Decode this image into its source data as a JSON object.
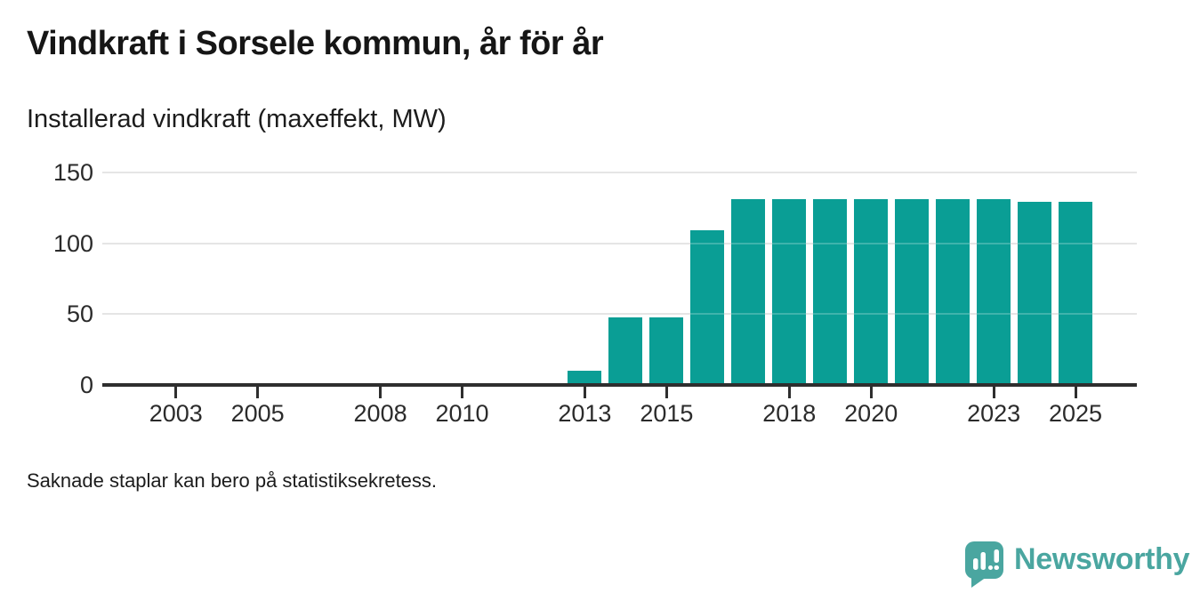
{
  "header": {
    "title": "Vindkraft i Sorsele kommun, år för år",
    "subtitle": "Installerad vindkraft (maxeffekt, MW)"
  },
  "footer": {
    "note": "Saknade staplar kan bero på statistiksekretess."
  },
  "brand": {
    "name": "Newsworthy",
    "icon": "newsworthy-speech-bubble-bar-chart-icon",
    "color": "#4aa6a0"
  },
  "colors": {
    "bar": "#0a9e95",
    "axis": "#2e2e2e",
    "grid": "#dedede",
    "title_text": "#161616",
    "tick_text": "#2b2b2b"
  },
  "chart_data": {
    "type": "bar",
    "title": "Vindkraft i Sorsele kommun, år för år",
    "subtitle": "Installerad vindkraft (maxeffekt, MW)",
    "xlabel": "",
    "ylabel": "Installerad vindkraft (maxeffekt, MW)",
    "unit": "MW",
    "x": [
      2013,
      2014,
      2015,
      2016,
      2017,
      2018,
      2019,
      2020,
      2021,
      2022,
      2023,
      2024,
      2025
    ],
    "values": [
      10,
      48,
      48,
      109,
      131,
      131,
      131,
      131,
      131,
      131,
      131,
      129,
      129
    ],
    "xticks": [
      2003,
      2005,
      2008,
      2010,
      2013,
      2015,
      2018,
      2020,
      2023,
      2025
    ],
    "yticks": [
      0,
      50,
      100,
      150
    ],
    "xlim": [
      2001.2,
      2026.5
    ],
    "ylim": [
      0,
      156
    ],
    "grid": "horizontal",
    "legend": "none",
    "bar_color": "#0a9e95",
    "note": "Saknade staplar kan bero på statistiksekretess."
  }
}
